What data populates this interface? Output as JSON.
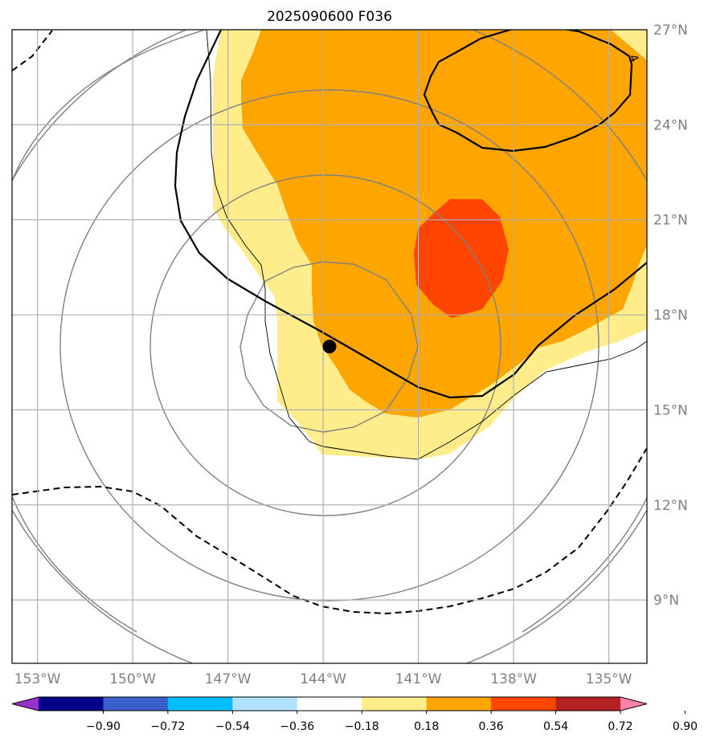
{
  "title": "2025090600 F036",
  "map": {
    "lat_labels": [
      "27°N",
      "24°N",
      "21°N",
      "18°N",
      "15°N",
      "12°N",
      "9°N"
    ],
    "lon_labels": [
      "153°W",
      "150°W",
      "147°W",
      "144°W",
      "141°W",
      "138°W",
      "135°W"
    ],
    "contour_label": "4",
    "storm_center": {
      "lat": 17.0,
      "lon": -143.8
    },
    "extent": {
      "lon_min": -153.8,
      "lon_max": -133.8,
      "lat_min": 7.0,
      "lat_max": 27.0
    }
  },
  "colorbar": {
    "levels": [
      "−0.90",
      "−0.72",
      "−0.54",
      "−0.36",
      "−0.18",
      "0.18",
      "0.36",
      "0.54",
      "0.72",
      "0.90"
    ],
    "colors": [
      "#9932cc",
      "#00008b",
      "#3a5fcd",
      "#00bfff",
      "#b0e2ff",
      "#ffffff",
      "#ffec8b",
      "#ffa500",
      "#ff4500",
      "#b22222",
      "#ff82ab"
    ]
  }
}
